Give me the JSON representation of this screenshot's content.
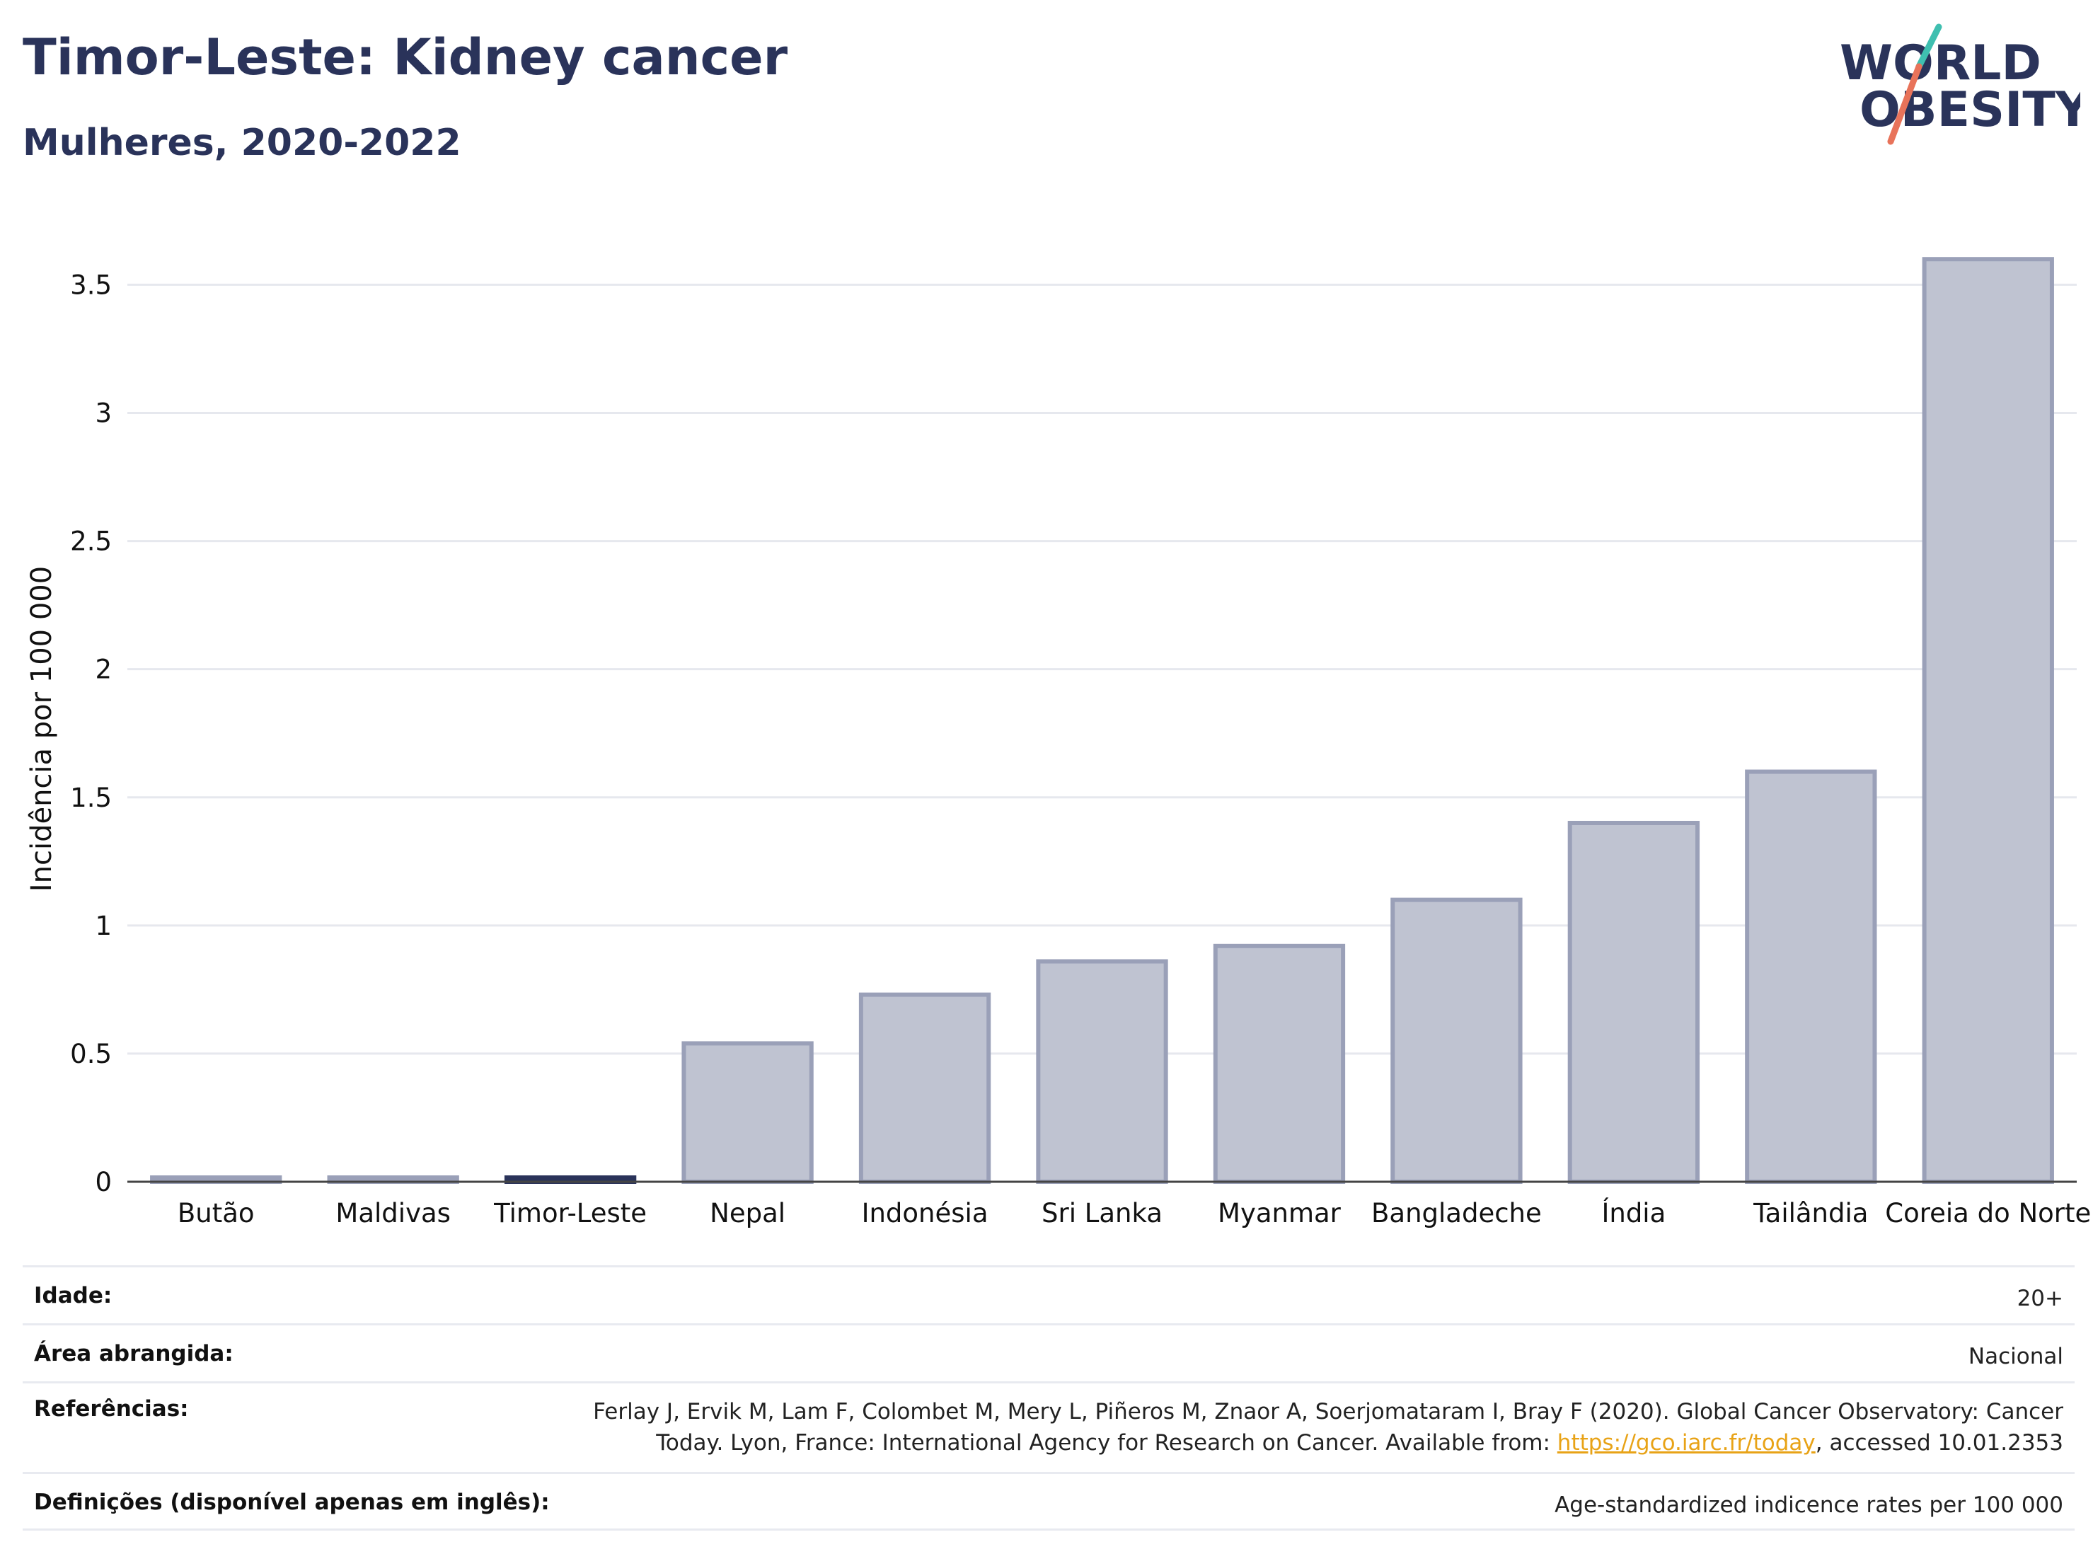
{
  "header": {
    "title": "Timor-Leste: Kidney cancer",
    "subtitle": "Mulheres, 2020-2022"
  },
  "logo": {
    "line1": "WORLD",
    "line2": "OBESITY",
    "colors": {
      "text": "#2a335a",
      "slash_top": "#3fbfb0",
      "slash_bottom": "#e8735a"
    }
  },
  "chart_data": {
    "type": "bar",
    "title": "Timor-Leste: Kidney cancer",
    "subtitle": "Mulheres, 2020-2022",
    "xlabel": "",
    "ylabel": "Incidência por 100 000",
    "ylim": [
      0,
      3.7
    ],
    "yticks": [
      0,
      0.5,
      1,
      1.5,
      2,
      2.5,
      3,
      3.5
    ],
    "ytick_labels": [
      "0",
      "0.5",
      "1",
      "1.5",
      "2",
      "2.5",
      "3",
      "3.5"
    ],
    "grid": true,
    "highlight": "Timor-Leste",
    "colors": {
      "bar": "#bfc3d1",
      "bar_border": "#9aa0b8",
      "highlight": "#2a335a",
      "grid": "#e6e8ee",
      "axis": "#444444"
    },
    "categories": [
      "Butão",
      "Maldivas",
      "Timor-Leste",
      "Nepal",
      "Indonésia",
      "Sri Lanka",
      "Myanmar",
      "Bangladeche",
      "Índia",
      "Tailândia",
      "Coreia do Norte"
    ],
    "values": [
      0.0,
      0.0,
      0.0,
      0.54,
      0.73,
      0.86,
      0.92,
      1.1,
      1.4,
      1.6,
      3.6
    ]
  },
  "meta": {
    "rows": [
      {
        "key": "Idade:",
        "value": "20+"
      },
      {
        "key": "Área abrangida:",
        "value": "Nacional"
      },
      {
        "key": "Referências:",
        "value_line1": "Ferlay J, Ervik M, Lam F, Colombet M, Mery L, Piñeros M, Znaor A, Soerjomataram I, Bray F (2020). Global Cancer Observatory: Cancer",
        "value_line2_pre": "Today. Lyon, France: International Agency for Research on Cancer. Available from: ",
        "link": "https://gco.iarc.fr/today",
        "value_line2_post": ", accessed 10.01.2353"
      },
      {
        "key": "Definições (disponível apenas em inglês):",
        "value": "Age-standardized indicence rates per 100 000"
      }
    ]
  }
}
